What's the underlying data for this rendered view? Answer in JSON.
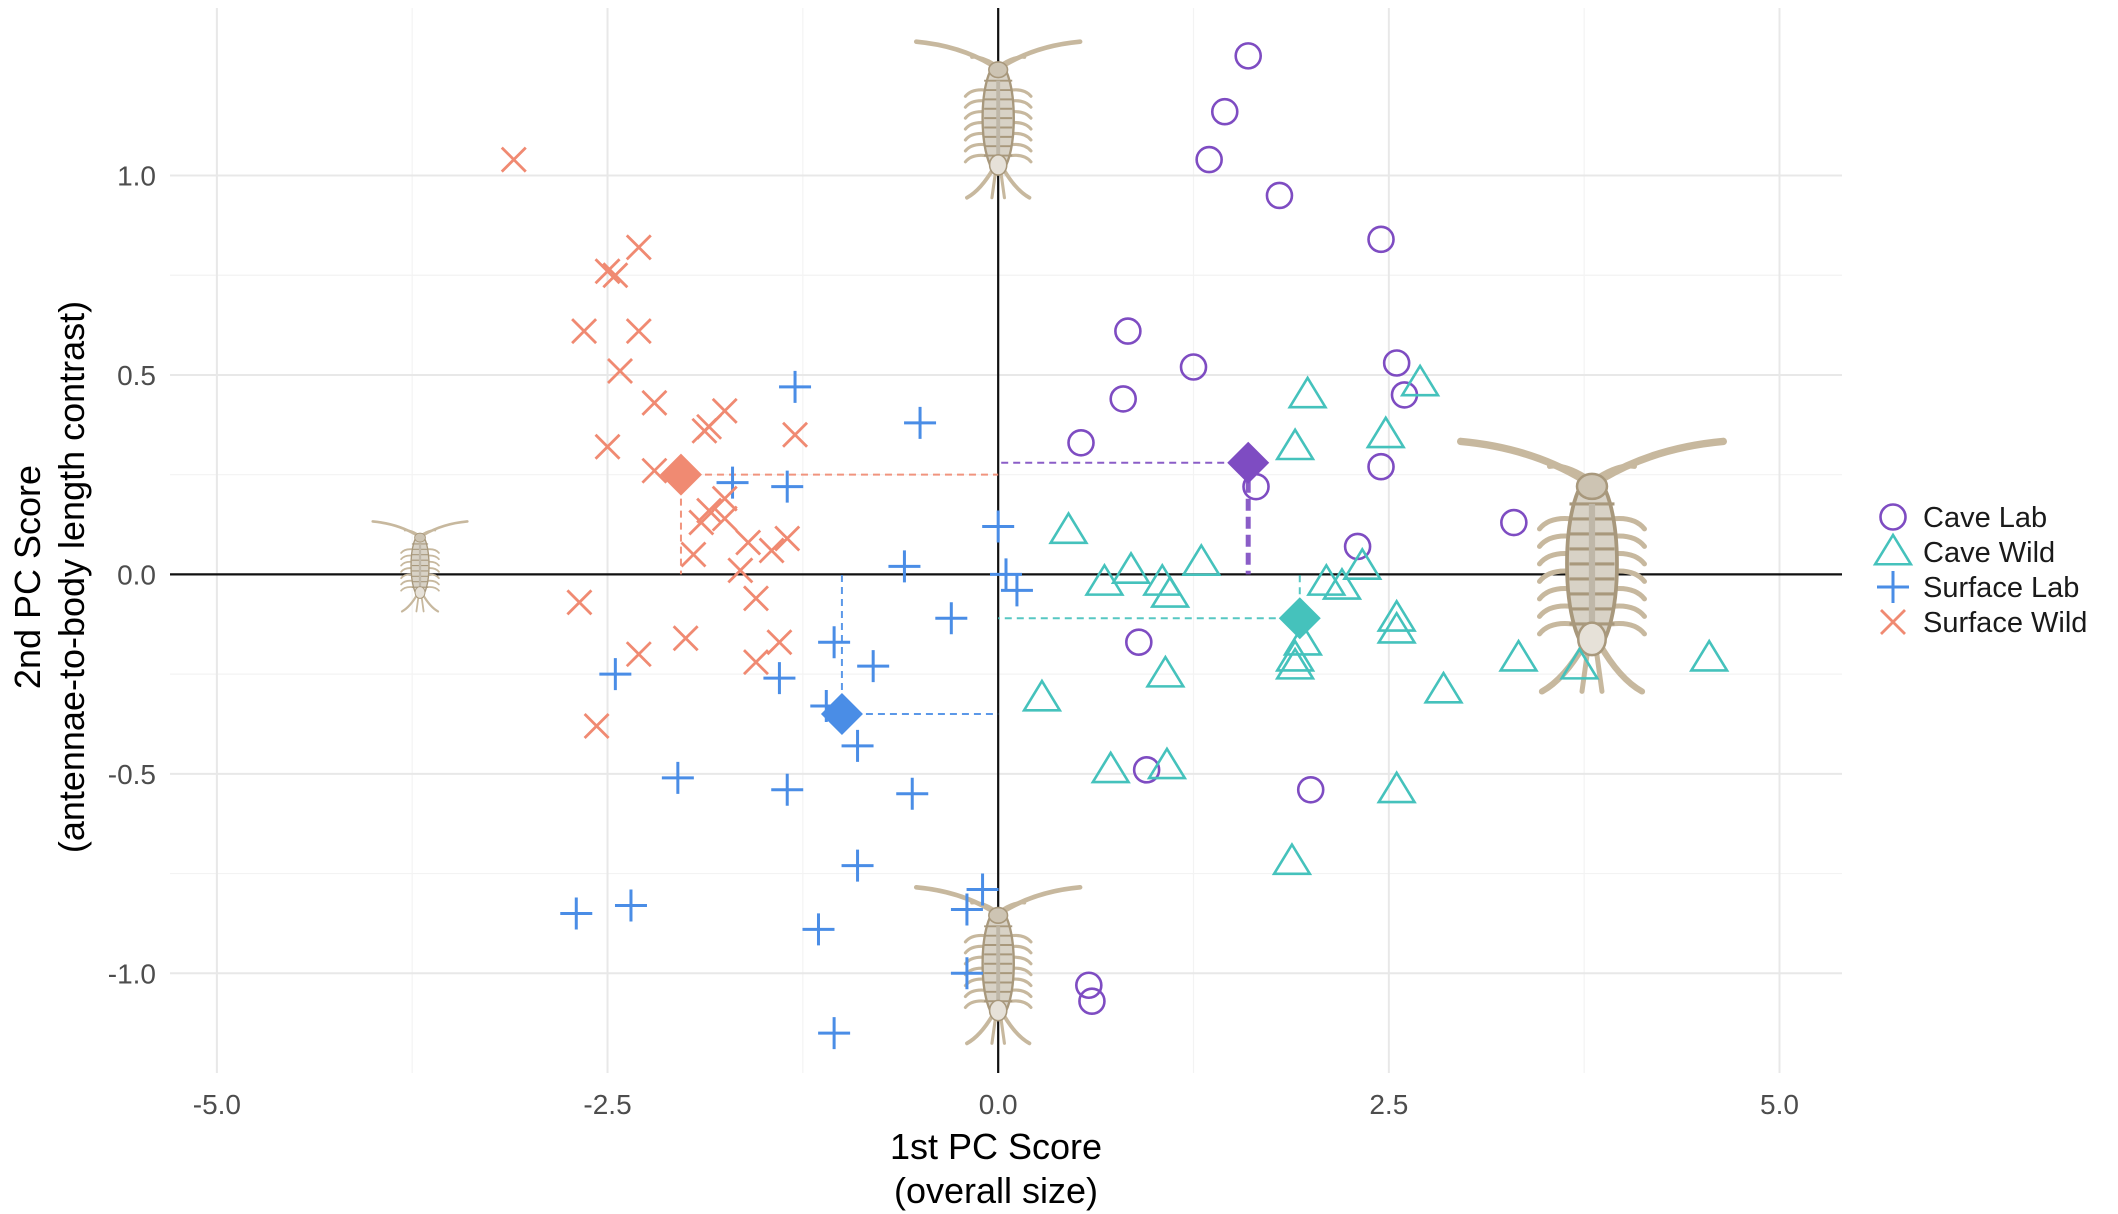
{
  "chart_data": {
    "type": "scatter",
    "title": "",
    "xlabel": [
      "1st PC Score",
      "(overall size)"
    ],
    "ylabel": [
      "2nd PC Score",
      "(antennae-to-body length contrast)"
    ],
    "xlim": [
      -5.3,
      5.4
    ],
    "ylim": [
      -1.25,
      1.42
    ],
    "xticks": [
      -5,
      -2.5,
      0,
      2.5,
      5
    ],
    "xtick_labels": [
      "-5.0",
      "-2.5",
      "0.0",
      "2.5",
      "5.0"
    ],
    "yticks": [
      -1,
      -0.5,
      0,
      0.5,
      1
    ],
    "ytick_labels": [
      "-1.0",
      "-0.5",
      "0.0",
      "0.5",
      "1.0"
    ],
    "grid": true,
    "legend_position": "right",
    "reference_lines": {
      "x": 0,
      "y": 0
    },
    "series": [
      {
        "name": "Cave Lab",
        "marker": "circle",
        "color": "#7e4cc2",
        "centroid": [
          1.6,
          0.28
        ],
        "points": [
          [
            1.6,
            1.3
          ],
          [
            1.45,
            1.16
          ],
          [
            1.35,
            1.04
          ],
          [
            1.8,
            0.95
          ],
          [
            2.45,
            0.84
          ],
          [
            0.83,
            0.61
          ],
          [
            1.25,
            0.52
          ],
          [
            2.55,
            0.53
          ],
          [
            0.8,
            0.44
          ],
          [
            2.6,
            0.45
          ],
          [
            0.53,
            0.33
          ],
          [
            2.45,
            0.27
          ],
          [
            1.65,
            0.22
          ],
          [
            3.3,
            0.13
          ],
          [
            2.3,
            0.07
          ],
          [
            0.9,
            -0.17
          ],
          [
            0.95,
            -0.49
          ],
          [
            2.0,
            -0.54
          ],
          [
            0.58,
            -1.03
          ],
          [
            0.6,
            -1.07
          ]
        ]
      },
      {
        "name": "Cave Wild",
        "marker": "triangle",
        "color": "#45c2bc",
        "centroid": [
          1.93,
          -0.11
        ],
        "points": [
          [
            2.7,
            0.48
          ],
          [
            1.98,
            0.45
          ],
          [
            2.48,
            0.35
          ],
          [
            1.9,
            0.32
          ],
          [
            0.45,
            0.11
          ],
          [
            1.3,
            0.03
          ],
          [
            0.85,
            0.01
          ],
          [
            2.33,
            0.02
          ],
          [
            0.68,
            -0.02
          ],
          [
            1.05,
            -0.02
          ],
          [
            2.1,
            -0.02
          ],
          [
            2.2,
            -0.03
          ],
          [
            1.1,
            -0.05
          ],
          [
            2.55,
            -0.11
          ],
          [
            2.55,
            -0.14
          ],
          [
            1.95,
            -0.17
          ],
          [
            1.9,
            -0.21
          ],
          [
            1.9,
            -0.23
          ],
          [
            3.33,
            -0.21
          ],
          [
            3.72,
            -0.23
          ],
          [
            4.55,
            -0.21
          ],
          [
            1.07,
            -0.25
          ],
          [
            2.85,
            -0.29
          ],
          [
            0.28,
            -0.31
          ],
          [
            1.08,
            -0.48
          ],
          [
            0.72,
            -0.49
          ],
          [
            2.55,
            -0.54
          ],
          [
            1.88,
            -0.72
          ]
        ]
      },
      {
        "name": "Surface Lab",
        "marker": "plus",
        "color": "#4a8de6",
        "centroid": [
          -1.0,
          -0.35
        ],
        "points": [
          [
            -1.3,
            0.47
          ],
          [
            -0.5,
            0.38
          ],
          [
            -1.7,
            0.23
          ],
          [
            -1.35,
            0.22
          ],
          [
            0.0,
            0.12
          ],
          [
            -0.6,
            0.02
          ],
          [
            0.05,
            0.0
          ],
          [
            0.12,
            -0.04
          ],
          [
            -0.3,
            -0.11
          ],
          [
            -1.05,
            -0.17
          ],
          [
            -0.8,
            -0.23
          ],
          [
            -2.45,
            -0.25
          ],
          [
            -1.4,
            -0.26
          ],
          [
            -1.1,
            -0.33
          ],
          [
            -0.9,
            -0.43
          ],
          [
            -2.05,
            -0.51
          ],
          [
            -1.35,
            -0.54
          ],
          [
            -0.55,
            -0.55
          ],
          [
            -0.9,
            -0.73
          ],
          [
            -0.1,
            -0.79
          ],
          [
            -0.2,
            -0.84
          ],
          [
            -2.7,
            -0.85
          ],
          [
            -2.35,
            -0.83
          ],
          [
            -1.15,
            -0.89
          ],
          [
            -0.2,
            -1.0
          ],
          [
            -1.05,
            -1.15
          ]
        ]
      },
      {
        "name": "Surface Wild",
        "marker": "x",
        "color": "#f08a72",
        "centroid": [
          -2.03,
          0.25
        ],
        "points": [
          [
            -3.1,
            1.04
          ],
          [
            -2.3,
            0.82
          ],
          [
            -2.5,
            0.76
          ],
          [
            -2.45,
            0.75
          ],
          [
            -2.65,
            0.61
          ],
          [
            -2.3,
            0.61
          ],
          [
            -2.42,
            0.51
          ],
          [
            -2.2,
            0.43
          ],
          [
            -1.75,
            0.41
          ],
          [
            -1.85,
            0.37
          ],
          [
            -1.88,
            0.36
          ],
          [
            -1.3,
            0.35
          ],
          [
            -2.5,
            0.32
          ],
          [
            -2.2,
            0.26
          ],
          [
            -1.75,
            0.19
          ],
          [
            -1.85,
            0.16
          ],
          [
            -1.75,
            0.14
          ],
          [
            -1.9,
            0.13
          ],
          [
            -1.35,
            0.09
          ],
          [
            -1.6,
            0.08
          ],
          [
            -1.45,
            0.06
          ],
          [
            -1.95,
            0.05
          ],
          [
            -1.65,
            0.01
          ],
          [
            -1.55,
            -0.06
          ],
          [
            -2.68,
            -0.07
          ],
          [
            -2.0,
            -0.16
          ],
          [
            -1.4,
            -0.17
          ],
          [
            -2.3,
            -0.2
          ],
          [
            -1.55,
            -0.22
          ],
          [
            -2.57,
            -0.38
          ]
        ]
      }
    ]
  },
  "illustration": {
    "subject": "isopod",
    "positions": [
      [
        -3.7,
        0.02
      ],
      [
        0.0,
        1.14
      ],
      [
        0.0,
        -0.98
      ],
      [
        3.8,
        0.02
      ]
    ],
    "sizes": [
      "small",
      "medium",
      "medium",
      "large"
    ],
    "color": "#c7b89e"
  }
}
